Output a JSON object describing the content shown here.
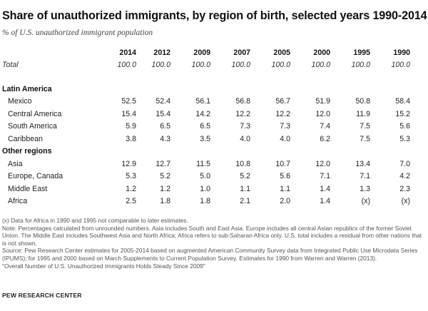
{
  "title": "Share of unauthorized immigrants, by region of birth, selected years 1990-2014",
  "subtitle": "% of U.S. unauthorized immigrant population",
  "chart_data": {
    "type": "table",
    "columns": [
      "2014",
      "2012",
      "2009",
      "2007",
      "2005",
      "2000",
      "1995",
      "1990"
    ],
    "total": {
      "label": "Total",
      "values": [
        "100.0",
        "100.0",
        "100.0",
        "100.0",
        "100.0",
        "100.0",
        "100.0",
        "100.0"
      ]
    },
    "sections": [
      {
        "name": "Latin America",
        "rows": [
          {
            "label": "Mexico",
            "values": [
              "52.5",
              "52.4",
              "56.1",
              "56.8",
              "56.7",
              "51.9",
              "50.8",
              "58.4"
            ]
          },
          {
            "label": "Central America",
            "values": [
              "15.4",
              "15.4",
              "14.2",
              "12.2",
              "12.2",
              "12.0",
              "11.9",
              "15.2"
            ]
          },
          {
            "label": "South America",
            "values": [
              "5.9",
              "6.5",
              "6.5",
              "7.3",
              "7.3",
              "7.4",
              "7.5",
              "5.6"
            ]
          },
          {
            "label": "Caribbean",
            "values": [
              "3.8",
              "4.3",
              "3.5",
              "4.0",
              "4.0",
              "6.2",
              "7.5",
              "5.3"
            ]
          }
        ]
      },
      {
        "name": "Other regions",
        "rows": [
          {
            "label": "Asia",
            "values": [
              "12.9",
              "12.7",
              "11.5",
              "10.8",
              "10.7",
              "12.0",
              "13.4",
              "7.0"
            ]
          },
          {
            "label": "Europe, Canada",
            "values": [
              "5.3",
              "5.2",
              "5.0",
              "5.2",
              "5.6",
              "7.1",
              "7.1",
              "4.2"
            ]
          },
          {
            "label": "Middle East",
            "values": [
              "1.2",
              "1.2",
              "1.0",
              "1.1",
              "1.1",
              "1.4",
              "1.3",
              "2.3"
            ]
          },
          {
            "label": "Africa",
            "values": [
              "2.5",
              "1.8",
              "1.8",
              "2.1",
              "2.0",
              "1.4",
              "(x)",
              "(x)"
            ]
          }
        ]
      }
    ]
  },
  "notes": {
    "x_note": "(x) Data for Africa in 1990 and 1995 not comparable to later estimates.",
    "note": "Note: Percentages calculated from unrounded numbers. Asia includes South and East Asia. Europe includes all central Asian republics of the former Soviet Union. The Middle East includes Southwest Asia and North Africa; Africa refers to sub-Saharan Africa only. U.S. total includes a residual from other nations that is not shown.",
    "source": "Source: Pew Research Center estimates for 2005-2014 based on augmented American Community Survey data from Integrated Public Use Microdata Series (IPUMS); for 1995 and 2000 based on March Supplements to Current Population Survey.  Estimates for 1990 from Warren and Warren (2013).",
    "report": "\"Overall Number of U.S. Unauthorized Immigrants Holds Steady Since 2009\""
  },
  "brand": "PEW RESEARCH CENTER"
}
